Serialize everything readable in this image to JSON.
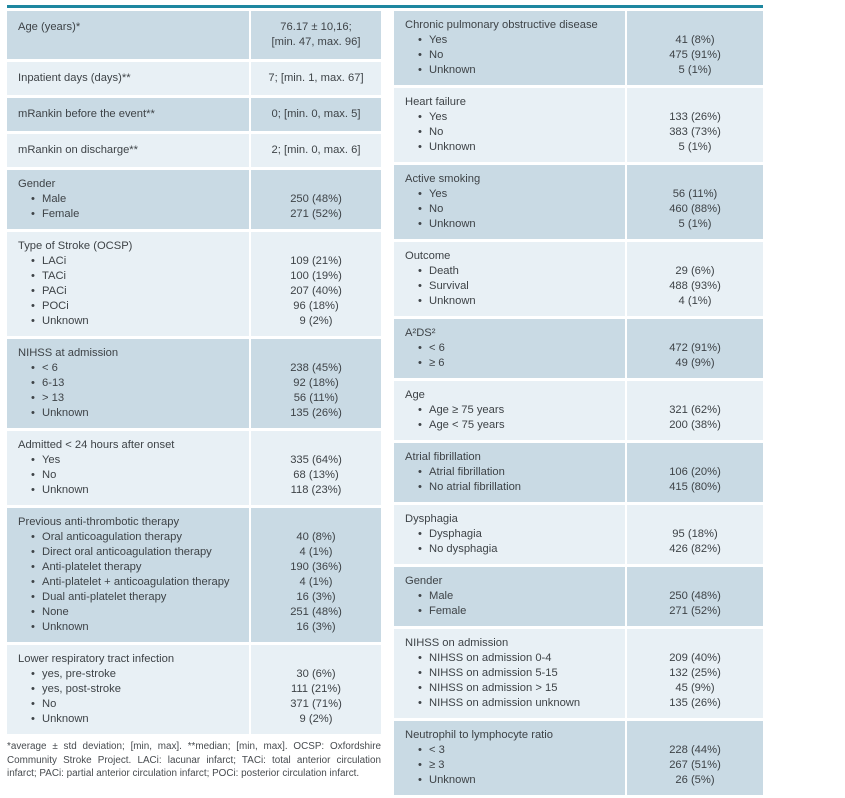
{
  "colors": {
    "accent_teal_rule": "#1e87a0",
    "row_dark": "#c9dae4",
    "row_light": "#e8f0f5",
    "text": "#3e4347"
  },
  "left_table": {
    "rows": [
      {
        "label": "Age (years)*",
        "values": [
          "76.17 ± 10,16;",
          "[min. 47, max. 96]"
        ]
      },
      {
        "label": "Inpatient days (days)**",
        "values": [
          "7; [min. 1, max. 67]"
        ]
      },
      {
        "label": "mRankin before the event**",
        "values": [
          "0; [min. 0, max. 5]"
        ]
      },
      {
        "label": "mRankin on discharge**",
        "values": [
          "2; [min. 0, max. 6]"
        ]
      },
      {
        "header": "Gender",
        "items": [
          "Male",
          "Female"
        ],
        "values": [
          "250 (48%)",
          "271 (52%)"
        ]
      },
      {
        "header": "Type of Stroke (OCSP)",
        "items": [
          "LACi",
          "TACi",
          "PACi",
          "POCi",
          "Unknown"
        ],
        "values": [
          "109 (21%)",
          "100 (19%)",
          "207 (40%)",
          "96 (18%)",
          "9 (2%)"
        ]
      },
      {
        "header": "NIHSS at admission",
        "items": [
          "< 6",
          "6-13",
          "> 13",
          "Unknown"
        ],
        "values": [
          "238 (45%)",
          "92 (18%)",
          "56 (11%)",
          "135 (26%)"
        ]
      },
      {
        "header": "Admitted < 24 hours after onset",
        "items": [
          "Yes",
          "No",
          "Unknown"
        ],
        "values": [
          "335 (64%)",
          "68 (13%)",
          "118 (23%)"
        ]
      },
      {
        "header": "Previous anti-thrombotic therapy",
        "items": [
          "Oral anticoagulation therapy",
          "Direct oral anticoagulation therapy",
          "Anti-platelet therapy",
          "Anti-platelet + anticoagulation therapy",
          "Dual anti-platelet therapy",
          "None",
          "Unknown"
        ],
        "values": [
          "40 (8%)",
          "4 (1%)",
          "190 (36%)",
          "4 (1%)",
          "16 (3%)",
          "251 (48%)",
          "16 (3%)"
        ]
      },
      {
        "header": "Lower respiratory tract infection",
        "items": [
          "yes, pre-stroke",
          "yes, post-stroke",
          "No",
          "Unknown"
        ],
        "values": [
          "30 (6%)",
          "111 (21%)",
          "371 (71%)",
          "9 (2%)"
        ]
      }
    ],
    "footnote": "*average ± std deviation; [min, max]. **median; [min, max]. OCSP: Oxfordshire Community Stroke Project. LACi: lacunar infarct; TACi: total anterior circulation infarct; PACi: partial anterior circulation infarct; POCi: posterior circulation infarct."
  },
  "right_table": {
    "rows": [
      {
        "header": "Chronic pulmonary obstructive disease",
        "items": [
          "Yes",
          "No",
          "Unknown"
        ],
        "values": [
          "41 (8%)",
          "475 (91%)",
          "5 (1%)"
        ]
      },
      {
        "header": "Heart failure",
        "items": [
          "Yes",
          "No",
          "Unknown"
        ],
        "values": [
          "133 (26%)",
          "383 (73%)",
          "5 (1%)"
        ]
      },
      {
        "header": "Active smoking",
        "items": [
          "Yes",
          "No",
          "Unknown"
        ],
        "values": [
          "56 (11%)",
          "460 (88%)",
          "5 (1%)"
        ]
      },
      {
        "header": "Outcome",
        "items": [
          "Death",
          "Survival",
          "Unknown"
        ],
        "values": [
          "29 (6%)",
          "488 (93%)",
          "4 (1%)"
        ]
      },
      {
        "header": "A²DS²",
        "items": [
          "< 6",
          "≥ 6"
        ],
        "values": [
          "472 (91%)",
          "49 (9%)"
        ]
      },
      {
        "header": "Age",
        "items": [
          "Age ≥ 75 years",
          "Age < 75 years"
        ],
        "values": [
          "321 (62%)",
          "200 (38%)"
        ]
      },
      {
        "header": "Atrial fibrillation",
        "items": [
          "Atrial fibrillation",
          "No atrial fibrillation"
        ],
        "values": [
          "106 (20%)",
          "415 (80%)"
        ]
      },
      {
        "header": "Dysphagia",
        "items": [
          "Dysphagia",
          "No dysphagia"
        ],
        "values": [
          "95 (18%)",
          "426 (82%)"
        ]
      },
      {
        "header": "Gender",
        "items": [
          "Male",
          "Female"
        ],
        "values": [
          "250 (48%)",
          "271 (52%)"
        ]
      },
      {
        "header": "NIHSS on admission",
        "items": [
          "NIHSS on admission 0-4",
          "NIHSS on admission 5-15",
          "NIHSS on admission > 15",
          "NIHSS on admission unknown"
        ],
        "values": [
          "209 (40%)",
          "132 (25%)",
          "45 (9%)",
          "135 (26%)"
        ]
      },
      {
        "header": "Neutrophil to lymphocyte ratio",
        "items": [
          "< 3",
          "≥ 3",
          "Unknown"
        ],
        "values": [
          "228 (44%)",
          "267 (51%)",
          "26 (5%)"
        ]
      }
    ]
  }
}
